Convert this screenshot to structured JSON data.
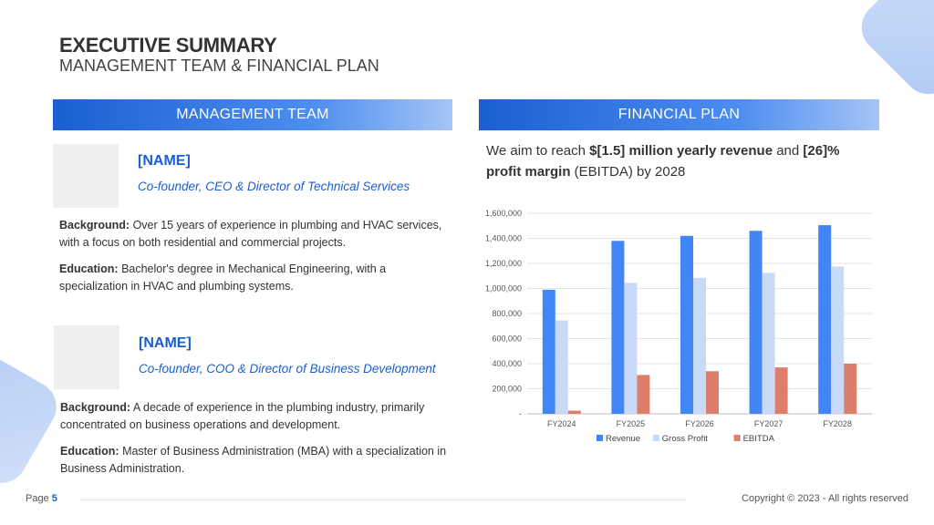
{
  "header": {
    "title": "EXECUTIVE SUMMARY",
    "subtitle": "MANAGEMENT TEAM & FINANCIAL PLAN"
  },
  "management": {
    "heading": "MANAGEMENT TEAM",
    "members": [
      {
        "name": "[NAME]",
        "role": "Co-founder, CEO & Director of Technical Services",
        "background_label": "Background:",
        "background": " Over 15 years of experience in plumbing and HVAC services, with a focus on both residential and commercial projects.",
        "education_label": "Education:",
        "education": " Bachelor's degree in Mechanical Engineering, with a specialization in HVAC and plumbing systems."
      },
      {
        "name": "[NAME]",
        "role": "Co-founder, COO & Director of Business Development",
        "background_label": "Background:",
        "background": " A decade of experience in the plumbing industry, primarily concentrated on business operations and development.",
        "education_label": "Education:",
        "education": " Master of Business Administration (MBA) with a specialization in Business Administration."
      }
    ]
  },
  "financial": {
    "heading": "FINANCIAL PLAN",
    "intro_1": "We aim to reach ",
    "intro_bold_1": "$[1.5] million yearly revenue",
    "intro_2": " and ",
    "intro_bold_2": "[26]% profit margin",
    "intro_3": " (EBITDA) by 2028"
  },
  "chart_data": {
    "type": "bar",
    "categories": [
      "FY2024",
      "FY2025",
      "FY2026",
      "FY2027",
      "FY2028"
    ],
    "series": [
      {
        "name": "Revenue",
        "color": "#4285f4",
        "values": [
          990000,
          1380000,
          1420000,
          1460000,
          1505000
        ]
      },
      {
        "name": "Gross Profit",
        "color": "#c9daf8",
        "values": [
          745000,
          1045000,
          1085000,
          1125000,
          1175000
        ]
      },
      {
        "name": "EBITDA",
        "color": "#dd7e6b",
        "values": [
          25000,
          310000,
          340000,
          370000,
          400000
        ]
      }
    ],
    "yticks": [
      "-",
      "200,000",
      "400,000",
      "600,000",
      "800,000",
      "1,000,000",
      "1,200,000",
      "1,400,000",
      "1,600,000"
    ],
    "ylim": [
      0,
      1600000
    ],
    "grid": true,
    "legend": "bottom"
  },
  "footer": {
    "page_label": "Page ",
    "page_number": "5",
    "copyright": "Copyright © 2023 - All rights reserved"
  }
}
